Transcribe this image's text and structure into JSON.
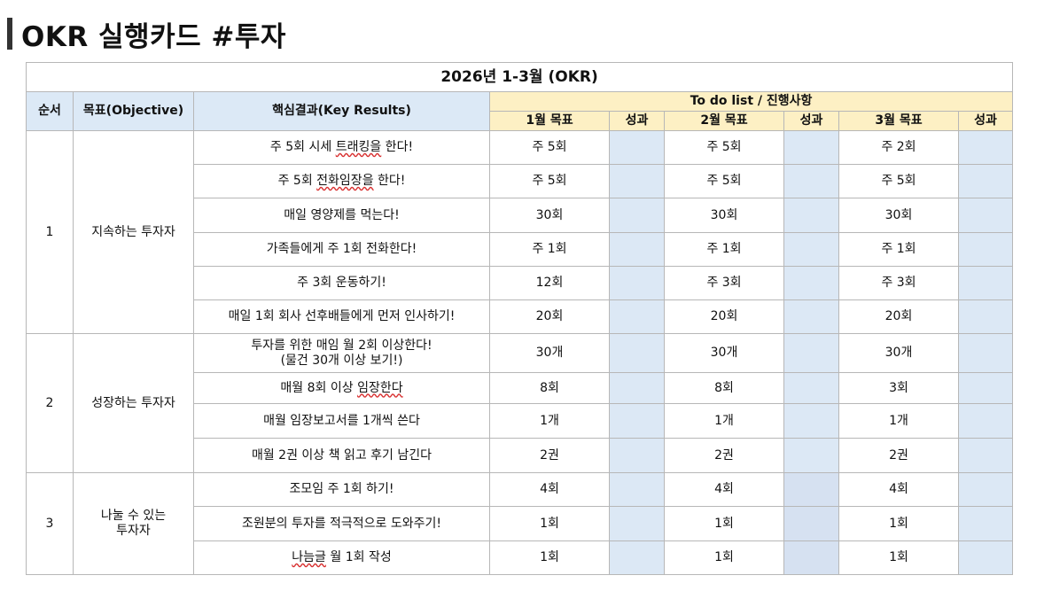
{
  "page": {
    "title": "OKR 실행카드 #투자"
  },
  "table": {
    "heading": "2026년 1-3월 (OKR)",
    "columns": {
      "order": "순서",
      "objective": "목표(Objective)",
      "key_results": "핵심결과(Key Results)",
      "todo": "To do list / 진행사항",
      "m1_goal": "1월 목표",
      "m1_result": "성과",
      "m2_goal": "2월 목표",
      "m2_result": "성과",
      "m3_goal": "3월 목표",
      "m3_result": "성과"
    },
    "groups": [
      {
        "order": "1",
        "objective": "지속하는 투자자",
        "rows": [
          {
            "kr_pre": "주 5회 시세 ",
            "kr_u": "트래킹을",
            "kr_post": " 한다!",
            "m1": "주 5회",
            "m2": "주 5회",
            "m3": "주 2회"
          },
          {
            "kr_pre": "주 5회 ",
            "kr_u": "전화임장을",
            "kr_post": " 한다!",
            "m1": "주 5회",
            "m2": "주 5회",
            "m3": "주 5회"
          },
          {
            "kr": "매일 영양제를 먹는다!",
            "m1": "30회",
            "m2": "30회",
            "m3": "30회"
          },
          {
            "kr": "가족들에게 주 1회 전화한다!",
            "m1": "주 1회",
            "m2": "주 1회",
            "m3": "주 1회"
          },
          {
            "kr": "주 3회 운동하기!",
            "m1": "12회",
            "m2": "주 3회",
            "m3": "주 3회"
          },
          {
            "kr": "매일 1회 회사 선후배들에게 먼저 인사하기!",
            "m1": "20회",
            "m2": "20회",
            "m3": "20회"
          }
        ]
      },
      {
        "order": "2",
        "objective": "성장하는 투자자",
        "rows": [
          {
            "kr_line1": "투자를 위한 매임 월 2회 이상한다!",
            "kr_line2": "(물건 30개 이상 보기!)",
            "m1": "30개",
            "m2": "30개",
            "m3": "30개"
          },
          {
            "kr_pre": "매월 8회 이상 ",
            "kr_u": "임장한다",
            "kr_post": "",
            "m1": "8회",
            "m2": "8회",
            "m3": "3회"
          },
          {
            "kr": "매월 임장보고서를 1개씩 쓴다",
            "m1": "1개",
            "m2": "1개",
            "m3": "1개"
          },
          {
            "kr": "매월 2권 이상 책 읽고 후기 남긴다",
            "m1": "2권",
            "m2": "2권",
            "m3": "2권"
          }
        ]
      },
      {
        "order": "3",
        "objective_line1": "나눌 수 있는",
        "objective_line2": "투자자",
        "rows": [
          {
            "kr": "조모임 주 1회 하기!",
            "m1": "4회",
            "m2": "4회",
            "m3": "4회"
          },
          {
            "kr": "조원분의 투자를 적극적으로 도와주기!",
            "m1": "1회",
            "m2": "1회",
            "m3": "1회"
          },
          {
            "kr_pre": "",
            "kr_u": "나늠글",
            "kr_post": " 월 1회 작성",
            "m1": "1회",
            "m2": "1회",
            "m3": "1회"
          }
        ]
      }
    ]
  },
  "colors": {
    "header_blue": "#dce9f6",
    "header_yellow": "#fdf0c4",
    "result_cell": "#dce8f5",
    "border": "#b7b7b7"
  }
}
